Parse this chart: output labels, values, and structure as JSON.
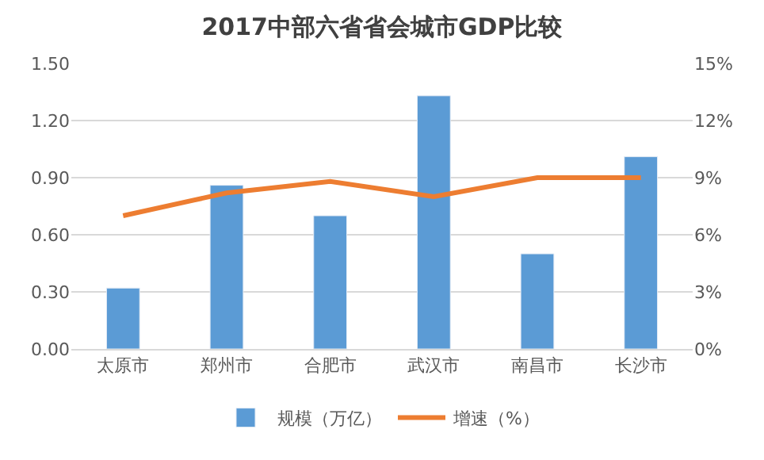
{
  "chart_data": {
    "type": "bar",
    "title": "2017中部六省省会城市GDP比较",
    "categories": [
      "太原市",
      "郑州市",
      "合肥市",
      "武汉市",
      "南昌市",
      "长沙市"
    ],
    "series": [
      {
        "name": "规模（万亿）",
        "color": "#5b9bd5",
        "values": [
          0.32,
          0.86,
          0.7,
          1.33,
          0.5,
          1.01
        ]
      },
      {
        "name": "增速（%）",
        "color": "#ed7d31",
        "type": "line",
        "axis": "y2",
        "values": [
          7.0,
          8.2,
          8.8,
          8.0,
          9.0,
          9.0
        ]
      }
    ],
    "ylim": [
      0,
      1.5
    ],
    "yticks": [
      {
        "value": 0,
        "label": "0.00"
      },
      {
        "value": 0.3,
        "label": "0.30"
      },
      {
        "value": 0.6,
        "label": "0.60"
      },
      {
        "value": 0.9,
        "label": "0.90"
      },
      {
        "value": 1.2,
        "label": "1.20"
      },
      {
        "value": 1.5,
        "label": "1.50"
      }
    ],
    "y2lim": [
      0,
      15
    ],
    "y2ticks": [
      {
        "value": 0,
        "label": "0%"
      },
      {
        "value": 3,
        "label": "3%"
      },
      {
        "value": 6,
        "label": "6%"
      },
      {
        "value": 9,
        "label": "9%"
      },
      {
        "value": 12,
        "label": "12%"
      },
      {
        "value": 15,
        "label": "15%"
      }
    ],
    "grid": "y",
    "legend": "bottom",
    "marker": "none",
    "line_style": "solid"
  }
}
